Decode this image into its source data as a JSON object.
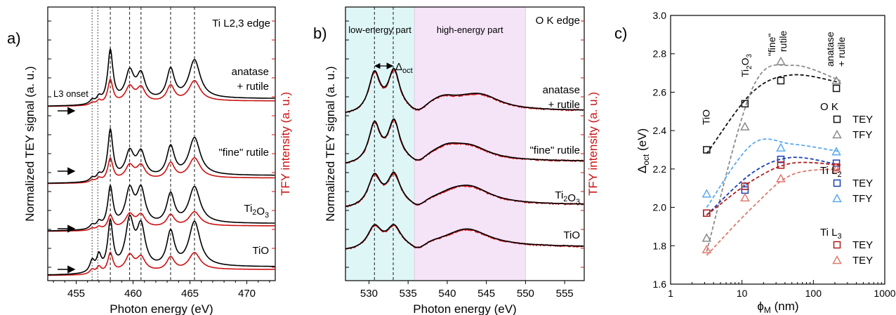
{
  "colors": {
    "tey": "#000000",
    "tfy": "#cc1111",
    "cyan_band": "#dff6f7",
    "magenta_band": "#f5e3f7",
    "ok_tey": "#111111",
    "ok_tfy": "#8a8a8a",
    "l2_tey": "#1a3fb5",
    "l2_tfy": "#5aa9ef",
    "l3_tey": "#b01c1c",
    "l3_tfy": "#e07a6e"
  },
  "chart_data": [
    {
      "type": "line",
      "panel_label": "a)",
      "title": "Ti L2,3 edge",
      "xlabel": "Photon energy (eV)",
      "ylabel_left": "Normalized TEY signal (a. u.)",
      "ylabel_right": "TFY intensity (a. u.)",
      "xlim": [
        452.5,
        472.5
      ],
      "xticks": [
        455,
        460,
        465,
        470
      ],
      "onset_label": "L3 onset",
      "dotted_lines": [
        456.4,
        456.9
      ],
      "dashed_lines": [
        458.0,
        459.7,
        460.7,
        463.3,
        465.4
      ],
      "samples": [
        "anatase + rutile",
        "\"fine\" rutile",
        "Ti2O3",
        "TiO"
      ],
      "peaks_energy": [
        456.4,
        457.0,
        458.0,
        459.7,
        460.7,
        463.3,
        465.4
      ],
      "series": [
        {
          "name": "anatase + rutile",
          "tey_peaks": [
            0.1,
            0.15,
            1.3,
            0.7,
            0.62,
            0.75,
            0.95
          ],
          "tfy_peaks": [
            0.06,
            0.1,
            0.6,
            0.38,
            0.35,
            0.4,
            0.5
          ]
        },
        {
          "name": "\"fine\" rutile",
          "tey_peaks": [
            0.08,
            0.13,
            1.2,
            0.6,
            0.58,
            0.72,
            0.9
          ],
          "tfy_peaks": [
            0.05,
            0.09,
            0.55,
            0.33,
            0.32,
            0.38,
            0.48
          ]
        },
        {
          "name": "Ti2O3",
          "tey_peaks": [
            0.1,
            0.15,
            1.0,
            0.85,
            0.85,
            0.75,
            0.9
          ],
          "tfy_peaks": [
            0.05,
            0.08,
            0.35,
            0.32,
            0.3,
            0.3,
            0.35
          ]
        },
        {
          "name": "TiO",
          "tey_peaks": [
            0.25,
            0.35,
            1.1,
            1.05,
            0.9,
            0.8,
            1.0
          ],
          "tfy_peaks": [
            0.1,
            0.15,
            0.45,
            0.35,
            0.3,
            0.3,
            0.38
          ]
        }
      ]
    },
    {
      "type": "line",
      "panel_label": "b)",
      "title": "O K edge",
      "xlabel": "Photon energy (eV)",
      "ylabel_left": "Normalized TEY signal (a. u.)",
      "ylabel_right": "TFY intensity (a. u.)",
      "xlim": [
        527,
        557.5
      ],
      "xticks": [
        530,
        535,
        540,
        545,
        550,
        555
      ],
      "bands": [
        {
          "label": "low-energy part",
          "range": [
            527,
            535.8
          ]
        },
        {
          "label": "high-energy part",
          "range": [
            535.8,
            550
          ]
        }
      ],
      "delta_label": "Δoct",
      "dashed_lines": [
        530.7,
        533.1
      ],
      "samples": [
        "anatase + rutile",
        "\"fine\" rutile",
        "Ti2O3",
        "TiO"
      ]
    },
    {
      "type": "scatter",
      "panel_label": "c)",
      "xlabel": "ϕM (nm)",
      "ylabel": "Δoct (eV)",
      "xscale": "log",
      "xlim": [
        1,
        1000
      ],
      "ylim": [
        1.6,
        3.0
      ],
      "xticks": [
        1,
        10,
        100,
        1000
      ],
      "yticks": [
        1.6,
        1.8,
        2.0,
        2.2,
        2.4,
        2.6,
        2.8,
        3.0
      ],
      "x": [
        3.2,
        11,
        35,
        210
      ],
      "sample_labels": [
        "TiO",
        "Ti2O3",
        "\"fine\" rutile",
        "anatase + rutile"
      ],
      "groups": [
        {
          "name": "O K",
          "series": [
            {
              "name": "TEY",
              "marker": "square",
              "values": [
                2.3,
                2.54,
                2.66,
                2.62
              ]
            },
            {
              "name": "TFY",
              "marker": "triangle",
              "values": [
                1.84,
                2.42,
                2.76,
                2.66
              ]
            }
          ]
        },
        {
          "name": "Ti L2",
          "series": [
            {
              "name": "TEY",
              "marker": "square",
              "values": [
                1.97,
                2.09,
                2.25,
                2.23
              ]
            },
            {
              "name": "TFY",
              "marker": "triangle",
              "values": [
                2.07,
                2.11,
                2.31,
                2.29
              ]
            }
          ]
        },
        {
          "name": "Ti L3",
          "series": [
            {
              "name": "TEY",
              "marker": "square",
              "values": [
                1.97,
                2.11,
                2.22,
                2.21
              ]
            },
            {
              "name": "TEY",
              "marker": "triangle",
              "values": [
                1.78,
                2.05,
                2.15,
                2.2
              ]
            }
          ]
        }
      ]
    }
  ]
}
